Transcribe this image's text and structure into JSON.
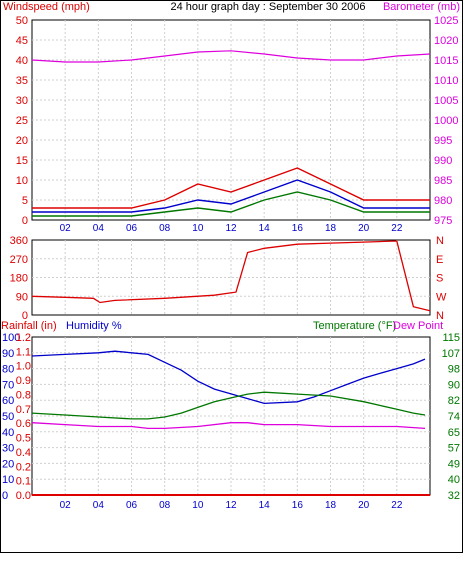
{
  "title": "24 hour graph day : September 30 2006",
  "colors": {
    "red": "#dd0000",
    "magenta": "#dd00dd",
    "blue": "#0000cc",
    "green": "#007700",
    "grid": "#cfcfcf",
    "frame": "#000000"
  },
  "chart_data": [
    {
      "type": "line",
      "panel": "wind-barometer",
      "left_axis_label": "Windspeed (mph)",
      "right_axis_label": "Barometer (mb)",
      "x_ticks": [
        "02",
        "04",
        "06",
        "08",
        "10",
        "12",
        "14",
        "16",
        "18",
        "20",
        "22"
      ],
      "x_range_hours": [
        0,
        24
      ],
      "left_ylim": [
        0,
        50
      ],
      "left_ticks": [
        "0",
        "5",
        "10",
        "15",
        "20",
        "25",
        "30",
        "35",
        "40",
        "45",
        "50"
      ],
      "right_ylim": [
        975,
        1025
      ],
      "right_ticks": [
        "975",
        "980",
        "985",
        "990",
        "995",
        "1000",
        "1005",
        "1010",
        "1015",
        "1020",
        "1025"
      ],
      "series": [
        {
          "role": "gust",
          "color": "red",
          "axis": "left",
          "x": [
            0,
            2,
            4,
            6,
            8,
            10,
            12,
            14,
            16,
            18,
            20,
            22,
            24
          ],
          "y": [
            3,
            3,
            3,
            3,
            5,
            9,
            7,
            10,
            13,
            9,
            5,
            5,
            5
          ]
        },
        {
          "role": "average",
          "color": "blue",
          "axis": "left",
          "x": [
            0,
            2,
            4,
            6,
            8,
            10,
            12,
            14,
            16,
            18,
            20,
            22,
            24
          ],
          "y": [
            2,
            2,
            2,
            2,
            3,
            5,
            4,
            7,
            10,
            7,
            3,
            3,
            3
          ]
        },
        {
          "role": "minimum",
          "color": "green",
          "axis": "left",
          "x": [
            0,
            2,
            4,
            6,
            8,
            10,
            12,
            14,
            16,
            18,
            20,
            22,
            24
          ],
          "y": [
            1,
            1,
            1,
            1,
            2,
            3,
            2,
            5,
            7,
            5,
            2,
            2,
            2
          ]
        },
        {
          "role": "barometer",
          "color": "magenta",
          "axis": "right",
          "x": [
            0,
            2,
            4,
            6,
            8,
            10,
            12,
            14,
            16,
            18,
            20,
            22,
            24
          ],
          "y": [
            1015,
            1014.5,
            1014.5,
            1015,
            1016,
            1017,
            1017.3,
            1016.5,
            1015.5,
            1015,
            1015,
            1016,
            1016.5
          ]
        }
      ]
    },
    {
      "type": "line",
      "panel": "wind-direction",
      "left_ylim": [
        0,
        360
      ],
      "left_ticks": [
        "0",
        "90",
        "180",
        "270",
        "360"
      ],
      "right_ticks": [
        "N",
        "W",
        "S",
        "E",
        "N"
      ],
      "series": [
        {
          "role": "direction",
          "color": "red",
          "axis": "left",
          "x": [
            0,
            2,
            3.7,
            4.1,
            5,
            8,
            11,
            12.3,
            13,
            14,
            16,
            18,
            20,
            22,
            23,
            24
          ],
          "y": [
            90,
            85,
            80,
            60,
            70,
            80,
            95,
            110,
            300,
            320,
            340,
            345,
            350,
            355,
            40,
            20
          ]
        }
      ]
    },
    {
      "type": "line",
      "panel": "rain-humidity-temperature",
      "rain_label": "Rainfall (in)",
      "humidity_label": "Humidity %",
      "temperature_label": "Temperature (°F)",
      "dewpoint_label": "Dew Point",
      "x_ticks": [
        "02",
        "04",
        "06",
        "08",
        "10",
        "12",
        "14",
        "16",
        "18",
        "20",
        "22"
      ],
      "humidity_ticks": [
        "0",
        "10",
        "20",
        "30",
        "40",
        "50",
        "60",
        "70",
        "80",
        "90",
        "100"
      ],
      "rain_ticks": [
        "0.0",
        "0.1",
        "0.2",
        "0.4",
        "0.5",
        "0.6",
        "0.7",
        "0.8",
        "0.9",
        "1.0",
        "1.1",
        "1.2"
      ],
      "temperature_ticks": [
        "32",
        "40",
        "49",
        "57",
        "65",
        "74",
        "82",
        "90",
        "98",
        "107",
        "115"
      ],
      "humidity_ylim": [
        0,
        100
      ],
      "temperature_ylim": [
        32,
        115
      ],
      "series": [
        {
          "role": "humidity",
          "color": "blue",
          "axis": "humidity",
          "x": [
            0,
            2,
            4,
            5,
            6,
            7,
            8,
            9,
            10,
            11,
            12,
            13,
            14,
            16,
            17,
            18,
            19,
            20,
            21,
            22,
            23,
            23.7
          ],
          "y": [
            88,
            89,
            90,
            91,
            90,
            89,
            84,
            79,
            72,
            67,
            64,
            61,
            58,
            59,
            62,
            66,
            70,
            74,
            77,
            80,
            83,
            86
          ]
        },
        {
          "role": "temperature",
          "color": "green",
          "axis": "temperature",
          "x": [
            0,
            2,
            4,
            6,
            7,
            8,
            9,
            10,
            11,
            12,
            13,
            14,
            16,
            18,
            20,
            21,
            22,
            23,
            23.7
          ],
          "y": [
            75,
            74,
            73,
            72,
            72,
            73,
            75,
            78,
            81,
            83,
            85,
            86,
            85,
            84,
            81,
            79,
            77,
            75,
            74
          ]
        },
        {
          "role": "dew-point",
          "color": "magenta",
          "axis": "temperature",
          "x": [
            0,
            2,
            4,
            6,
            7,
            8,
            10,
            12,
            13,
            14,
            16,
            18,
            20,
            22,
            23.7
          ],
          "y": [
            70,
            69,
            68,
            68,
            67,
            67,
            68,
            70,
            70,
            69,
            69,
            68,
            68,
            68,
            67
          ]
        },
        {
          "role": "rainfall",
          "color": "red",
          "axis": "rain",
          "x": [
            0,
            24
          ],
          "y": [
            0,
            0
          ]
        }
      ]
    }
  ]
}
